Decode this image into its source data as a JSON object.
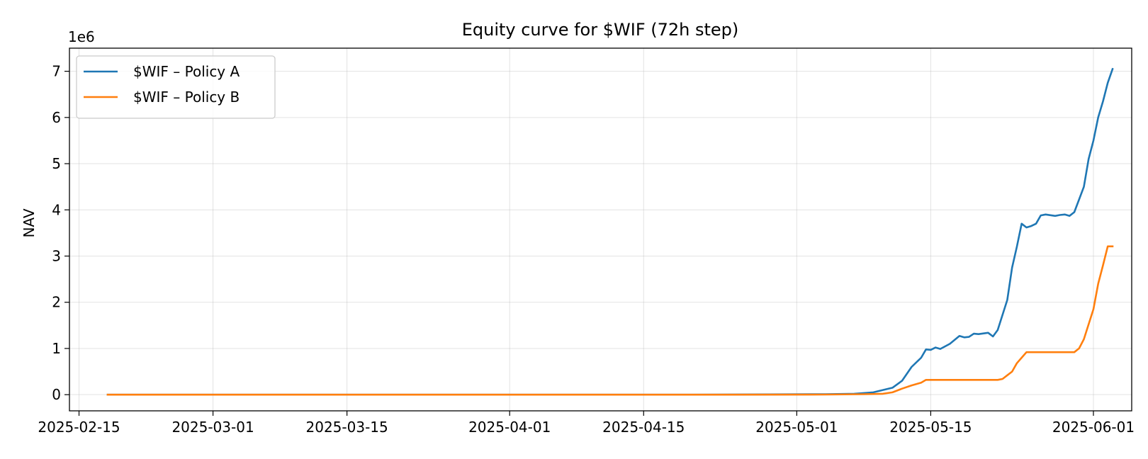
{
  "chart_data": {
    "type": "line",
    "title": "Equity curve for $WIF (72h step)",
    "xlabel": "",
    "ylabel": "NAV",
    "y_offset_label": "1e6",
    "y_scale": 1000000,
    "x_scale": "date",
    "xlim": [
      "2025-02-14",
      "2025-06-05"
    ],
    "ylim": [
      -350000,
      7500000
    ],
    "x_ticks": [
      "2025-02-15",
      "2025-03-01",
      "2025-03-15",
      "2025-04-01",
      "2025-04-15",
      "2025-05-01",
      "2025-05-15",
      "2025-06-01"
    ],
    "y_ticks": [
      0,
      1000000,
      2000000,
      3000000,
      4000000,
      5000000,
      6000000,
      7000000
    ],
    "y_tick_labels": [
      "0",
      "1",
      "2",
      "3",
      "4",
      "5",
      "6",
      "7"
    ],
    "grid": true,
    "legend_position": "top-left",
    "series": [
      {
        "name": "$WIF – Policy A",
        "color": "#1f77b4",
        "points": [
          [
            "2025-02-18",
            0
          ],
          [
            "2025-03-01",
            0
          ],
          [
            "2025-04-01",
            0
          ],
          [
            "2025-04-20",
            0
          ],
          [
            "2025-04-28",
            5000
          ],
          [
            "2025-05-04",
            10000
          ],
          [
            "2025-05-07",
            20000
          ],
          [
            "2025-05-09",
            50000
          ],
          [
            "2025-05-11",
            150000
          ],
          [
            "2025-05-12",
            300000
          ],
          [
            "2025-05-13",
            600000
          ],
          [
            "2025-05-14",
            800000
          ],
          [
            "2025-05-14T12:00",
            980000
          ],
          [
            "2025-05-15",
            970000
          ],
          [
            "2025-05-15T12:00",
            1020000
          ],
          [
            "2025-05-16",
            990000
          ],
          [
            "2025-05-17",
            1100000
          ],
          [
            "2025-05-18",
            1270000
          ],
          [
            "2025-05-18T12:00",
            1240000
          ],
          [
            "2025-05-19",
            1250000
          ],
          [
            "2025-05-19T12:00",
            1320000
          ],
          [
            "2025-05-20",
            1310000
          ],
          [
            "2025-05-21",
            1340000
          ],
          [
            "2025-05-21T12:00",
            1260000
          ],
          [
            "2025-05-22",
            1400000
          ],
          [
            "2025-05-23",
            2050000
          ],
          [
            "2025-05-23T12:00",
            2750000
          ],
          [
            "2025-05-24",
            3200000
          ],
          [
            "2025-05-24T12:00",
            3700000
          ],
          [
            "2025-05-25",
            3620000
          ],
          [
            "2025-05-25T12:00",
            3650000
          ],
          [
            "2025-05-26",
            3700000
          ],
          [
            "2025-05-26T12:00",
            3880000
          ],
          [
            "2025-05-27",
            3900000
          ],
          [
            "2025-05-28",
            3870000
          ],
          [
            "2025-05-28T12:00",
            3890000
          ],
          [
            "2025-05-29",
            3900000
          ],
          [
            "2025-05-29T12:00",
            3870000
          ],
          [
            "2025-05-30",
            3950000
          ],
          [
            "2025-05-31",
            4500000
          ],
          [
            "2025-05-31T12:00",
            5100000
          ],
          [
            "2025-06-01",
            5500000
          ],
          [
            "2025-06-01T12:00",
            6000000
          ],
          [
            "2025-06-02",
            6350000
          ],
          [
            "2025-06-02T12:00",
            6750000
          ],
          [
            "2025-06-03",
            7050000
          ]
        ]
      },
      {
        "name": "$WIF – Policy B",
        "color": "#ff7f0e",
        "points": [
          [
            "2025-02-18",
            0
          ],
          [
            "2025-03-01",
            0
          ],
          [
            "2025-04-01",
            0
          ],
          [
            "2025-04-20",
            0
          ],
          [
            "2025-05-04",
            3000
          ],
          [
            "2025-05-08",
            10000
          ],
          [
            "2025-05-10",
            20000
          ],
          [
            "2025-05-11",
            50000
          ],
          [
            "2025-05-12",
            130000
          ],
          [
            "2025-05-13",
            200000
          ],
          [
            "2025-05-14",
            260000
          ],
          [
            "2025-05-14T12:00",
            320000
          ],
          [
            "2025-05-22",
            320000
          ],
          [
            "2025-05-22T12:00",
            340000
          ],
          [
            "2025-05-23",
            420000
          ],
          [
            "2025-05-23T12:00",
            500000
          ],
          [
            "2025-05-24",
            680000
          ],
          [
            "2025-05-24T12:00",
            800000
          ],
          [
            "2025-05-25",
            920000
          ],
          [
            "2025-05-30",
            920000
          ],
          [
            "2025-05-30T12:00",
            1000000
          ],
          [
            "2025-05-31",
            1200000
          ],
          [
            "2025-06-01",
            1850000
          ],
          [
            "2025-06-01T12:00",
            2400000
          ],
          [
            "2025-06-02",
            2800000
          ],
          [
            "2025-06-02T12:00",
            3210000
          ],
          [
            "2025-06-03",
            3210000
          ]
        ]
      }
    ]
  }
}
